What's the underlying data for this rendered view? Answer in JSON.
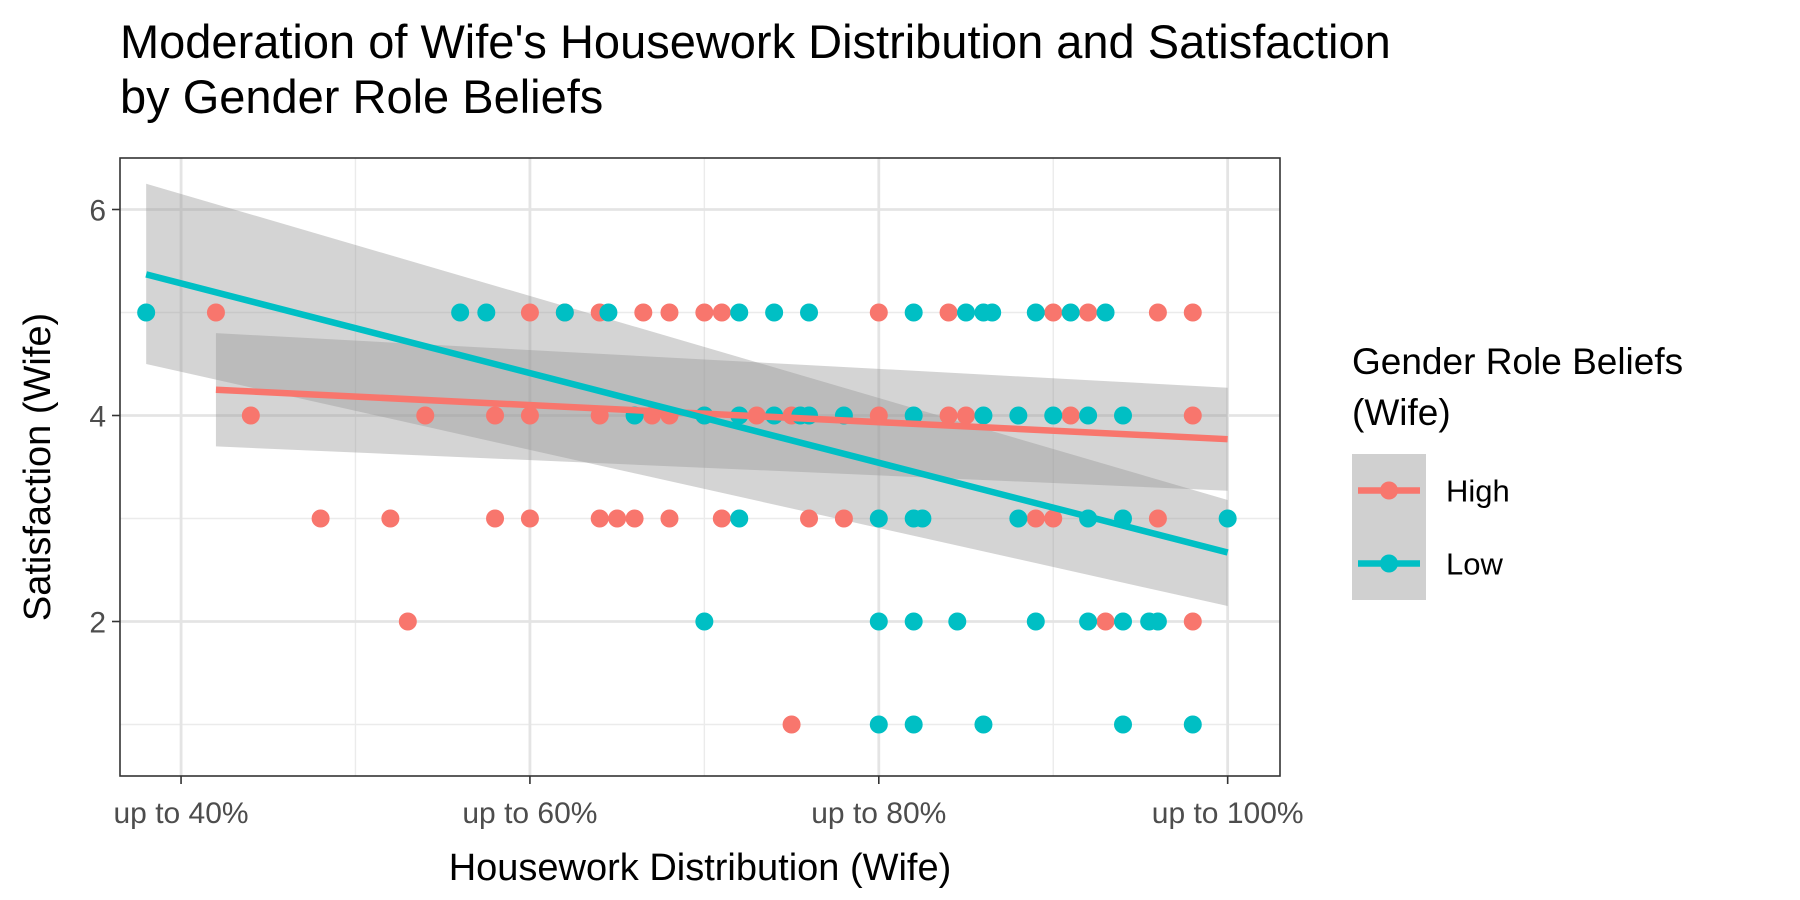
{
  "chart_data": {
    "type": "scatter",
    "title": [
      "Moderation of Wife's Housework Distribution and Satisfaction",
      "by Gender Role Beliefs"
    ],
    "xlabel": "Housework Distribution (Wife)",
    "ylabel": "Satisfaction (Wife)",
    "xlim": [
      36.5,
      103.0
    ],
    "ylim": [
      0.5,
      6.5
    ],
    "x_ticks": [
      40,
      60,
      80,
      100
    ],
    "x_tick_labels": [
      "up to 40%",
      "up to 60%",
      "up to 80%",
      "up to 100%"
    ],
    "x_minor_ticks": [
      50,
      70,
      90
    ],
    "y_ticks": [
      2,
      4,
      6
    ],
    "y_tick_labels": [
      "2",
      "4",
      "6"
    ],
    "y_minor_ticks": [
      1,
      3,
      5
    ],
    "grid": true,
    "legend": {
      "title": [
        "Gender Role Beliefs",
        "(Wife)"
      ],
      "position": "right"
    },
    "series": [
      {
        "name": "High",
        "color": "#F8766D",
        "points": [
          [
            42,
            5
          ],
          [
            60,
            5
          ],
          [
            62,
            5
          ],
          [
            64,
            5
          ],
          [
            66.5,
            5
          ],
          [
            68,
            5
          ],
          [
            70,
            5
          ],
          [
            71,
            5
          ],
          [
            80,
            5
          ],
          [
            84,
            5
          ],
          [
            90,
            5
          ],
          [
            92,
            5
          ],
          [
            96,
            5
          ],
          [
            98,
            5
          ],
          [
            44,
            4
          ],
          [
            54,
            4
          ],
          [
            58,
            4
          ],
          [
            60,
            4
          ],
          [
            64,
            4
          ],
          [
            67,
            4
          ],
          [
            68,
            4
          ],
          [
            70,
            4
          ],
          [
            73,
            4
          ],
          [
            75,
            4
          ],
          [
            80,
            4
          ],
          [
            84,
            4
          ],
          [
            85,
            4
          ],
          [
            91,
            4
          ],
          [
            98,
            4
          ],
          [
            48,
            3
          ],
          [
            52,
            3
          ],
          [
            58,
            3
          ],
          [
            60,
            3
          ],
          [
            64,
            3
          ],
          [
            65,
            3
          ],
          [
            66,
            3
          ],
          [
            68,
            3
          ],
          [
            71,
            3
          ],
          [
            76,
            3
          ],
          [
            78,
            3
          ],
          [
            89,
            3
          ],
          [
            90,
            3
          ],
          [
            96,
            3
          ],
          [
            53,
            2
          ],
          [
            93,
            2
          ],
          [
            98,
            2
          ],
          [
            75,
            1
          ]
        ],
        "fit": {
          "x": [
            42,
            100
          ],
          "y": [
            4.25,
            3.77
          ],
          "ci_low": [
            3.7,
            3.27
          ],
          "ci_high": [
            4.8,
            4.27
          ]
        }
      },
      {
        "name": "Low",
        "color": "#00BFC4",
        "points": [
          [
            38,
            5
          ],
          [
            56,
            5
          ],
          [
            57.5,
            5
          ],
          [
            62,
            5
          ],
          [
            64.5,
            5
          ],
          [
            72,
            5
          ],
          [
            74,
            5
          ],
          [
            76,
            5
          ],
          [
            82,
            5
          ],
          [
            85,
            5
          ],
          [
            86,
            5
          ],
          [
            86.5,
            5
          ],
          [
            89,
            5
          ],
          [
            91,
            5
          ],
          [
            93,
            5
          ],
          [
            66,
            4
          ],
          [
            70,
            4
          ],
          [
            72,
            4
          ],
          [
            74,
            4
          ],
          [
            75.5,
            4
          ],
          [
            76,
            4
          ],
          [
            78,
            4
          ],
          [
            82,
            4
          ],
          [
            86,
            4
          ],
          [
            88,
            4
          ],
          [
            90,
            4
          ],
          [
            92,
            4
          ],
          [
            94,
            4
          ],
          [
            72,
            3
          ],
          [
            80,
            3
          ],
          [
            82,
            3
          ],
          [
            82.5,
            3
          ],
          [
            88,
            3
          ],
          [
            92,
            3
          ],
          [
            94,
            3
          ],
          [
            100,
            3
          ],
          [
            70,
            2
          ],
          [
            80,
            2
          ],
          [
            82,
            2
          ],
          [
            84.5,
            2
          ],
          [
            89,
            2
          ],
          [
            92,
            2
          ],
          [
            94,
            2
          ],
          [
            95.5,
            2
          ],
          [
            96,
            2
          ],
          [
            80,
            1
          ],
          [
            82,
            1
          ],
          [
            86,
            1
          ],
          [
            94,
            1
          ],
          [
            98,
            1
          ]
        ],
        "fit": {
          "x": [
            38,
            100
          ],
          "y": [
            5.37,
            2.67
          ],
          "ci_low": [
            4.5,
            2.15
          ],
          "ci_high": [
            6.25,
            3.18
          ]
        }
      }
    ]
  }
}
